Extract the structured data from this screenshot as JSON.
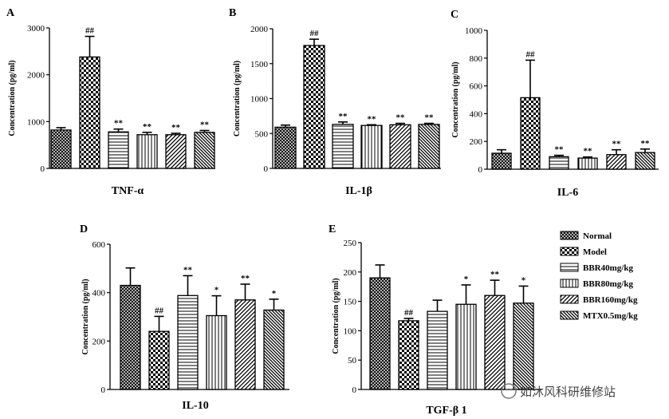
{
  "legend": {
    "entries": [
      {
        "name": "Normal",
        "pattern": "crosshatch"
      },
      {
        "name": "Model",
        "pattern": "checker"
      },
      {
        "name": "BBR40mg/kg",
        "pattern": "hlines"
      },
      {
        "name": "BBR80mg/kg",
        "pattern": "vlines"
      },
      {
        "name": "BBR160mg/kg",
        "pattern": "diag"
      },
      {
        "name": "MTX0.5mg/kg",
        "pattern": "diagdense"
      }
    ]
  },
  "watermark": {
    "text": "如沐风科研维修站"
  },
  "chart_data": [
    {
      "panel": "A",
      "type": "bar",
      "title": "TNF-α",
      "ylabel": "Concentration (pg/ml)",
      "ylim": [
        0,
        3000
      ],
      "yticks": [
        0,
        1000,
        2000,
        3000
      ],
      "categories": [
        "Normal",
        "Model",
        "BBR40mg/kg",
        "BBR80mg/kg",
        "BBR160mg/kg",
        "MTX0.5mg/kg"
      ],
      "values": [
        820,
        2380,
        780,
        720,
        720,
        770
      ],
      "errors": [
        50,
        440,
        60,
        50,
        30,
        40
      ],
      "annotations": [
        "",
        "##",
        "**",
        "**",
        "**",
        "**"
      ]
    },
    {
      "panel": "B",
      "type": "bar",
      "title": "IL-1β",
      "ylabel": "Concentration (pg/ml)",
      "ylim": [
        0,
        2000
      ],
      "yticks": [
        0,
        500,
        1000,
        1500,
        2000
      ],
      "categories": [
        "Normal",
        "Model",
        "BBR40mg/kg",
        "BBR80mg/kg",
        "BBR160mg/kg",
        "MTX0.5mg/kg"
      ],
      "values": [
        590,
        1760,
        630,
        615,
        625,
        630
      ],
      "errors": [
        30,
        90,
        35,
        10,
        20,
        15
      ],
      "annotations": [
        "",
        "##",
        "**",
        "**",
        "**",
        "**"
      ]
    },
    {
      "panel": "C",
      "type": "bar",
      "title": "IL-6",
      "ylabel": "Concentration (pg/ml)",
      "ylim": [
        0,
        1000
      ],
      "yticks": [
        0,
        200,
        400,
        600,
        800,
        1000
      ],
      "categories": [
        "Normal",
        "Model",
        "BBR40mg/kg",
        "BBR80mg/kg",
        "BBR160mg/kg",
        "MTX0.5mg/kg"
      ],
      "values": [
        115,
        515,
        90,
        80,
        105,
        120
      ],
      "errors": [
        25,
        270,
        10,
        8,
        35,
        25
      ],
      "annotations": [
        "",
        "##",
        "**",
        "**",
        "**",
        "**"
      ]
    },
    {
      "panel": "D",
      "type": "bar",
      "title": "IL-10",
      "ylabel": "Concentration (pg/ml)",
      "ylim": [
        0,
        600
      ],
      "yticks": [
        0,
        200,
        400,
        600
      ],
      "categories": [
        "Normal",
        "Model",
        "BBR40mg/kg",
        "BBR80mg/kg",
        "BBR160mg/kg",
        "MTX0.5mg/kg"
      ],
      "values": [
        430,
        240,
        388,
        305,
        370,
        328
      ],
      "errors": [
        72,
        62,
        82,
        82,
        65,
        45
      ],
      "annotations": [
        "",
        "##",
        "**",
        "*",
        "**",
        "*"
      ]
    },
    {
      "panel": "E",
      "type": "bar",
      "title": "TGF-β 1",
      "ylabel": "Concentration (pg/ml)",
      "ylim": [
        0,
        250
      ],
      "yticks": [
        0,
        50,
        100,
        150,
        200,
        250
      ],
      "categories": [
        "Normal",
        "Model",
        "BBR40mg/kg",
        "BBR80mg/kg",
        "BBR160mg/kg",
        "MTX0.5mg/kg"
      ],
      "values": [
        190,
        117,
        133,
        145,
        160,
        147
      ],
      "errors": [
        22,
        4,
        19,
        33,
        26,
        29
      ],
      "annotations": [
        "",
        "##",
        "",
        "*",
        "**",
        "*"
      ]
    }
  ]
}
